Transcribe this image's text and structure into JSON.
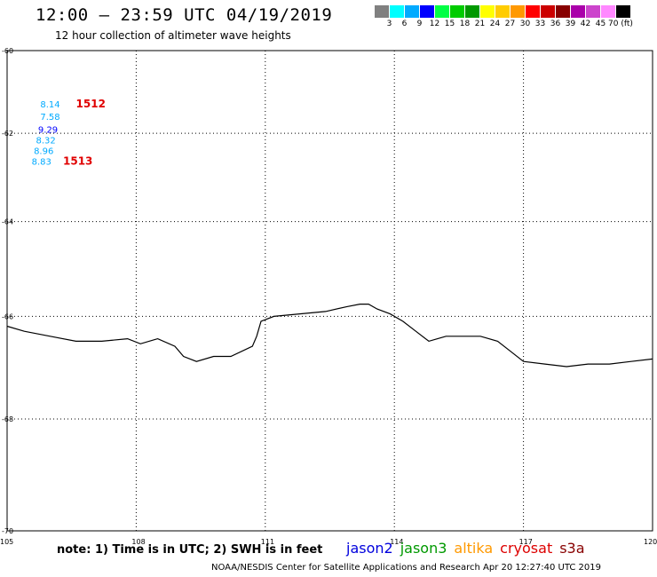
{
  "header": {
    "title": "12:00 – 23:59 UTC 04/19/2019",
    "subtitle": "12 hour collection of altimeter wave heights"
  },
  "legend": {
    "colors": [
      "#808080",
      "#00ffff",
      "#00aaff",
      "#0000ff",
      "#00ff44",
      "#00cc00",
      "#009900",
      "#ffff00",
      "#ffcc00",
      "#ff9900",
      "#ff0000",
      "#cc0000",
      "#880000",
      "#aa00aa",
      "#cc44cc",
      "#ff88ff",
      "#000000"
    ],
    "ticks": [
      "3",
      "6",
      "9",
      "12",
      "15",
      "18",
      "21",
      "24",
      "27",
      "30",
      "33",
      "36",
      "39",
      "42",
      "45",
      "70 (ft)"
    ]
  },
  "map": {
    "y_labels": [
      "-60",
      "-62",
      "-64",
      "-66",
      "-68",
      "-70"
    ],
    "x_labels": [
      "105",
      "108",
      "111",
      "114",
      "117",
      "120"
    ],
    "grid": true,
    "coastline": [
      [
        105.0,
        -66.2
      ],
      [
        105.4,
        -66.3
      ],
      [
        106.0,
        -66.4
      ],
      [
        106.6,
        -66.5
      ],
      [
        107.2,
        -66.5
      ],
      [
        107.8,
        -66.45
      ],
      [
        108.1,
        -66.55
      ],
      [
        108.5,
        -66.45
      ],
      [
        108.9,
        -66.6
      ],
      [
        109.1,
        -66.8
      ],
      [
        109.4,
        -66.9
      ],
      [
        109.8,
        -66.8
      ],
      [
        110.2,
        -66.8
      ],
      [
        110.7,
        -66.6
      ],
      [
        110.8,
        -66.4
      ],
      [
        110.9,
        -66.1
      ],
      [
        111.2,
        -66.0
      ],
      [
        111.8,
        -65.95
      ],
      [
        112.4,
        -65.9
      ],
      [
        112.9,
        -65.8
      ],
      [
        113.2,
        -65.75
      ],
      [
        113.4,
        -65.75
      ],
      [
        113.6,
        -65.85
      ],
      [
        113.9,
        -65.95
      ],
      [
        114.2,
        -66.1
      ],
      [
        114.5,
        -66.3
      ],
      [
        114.8,
        -66.5
      ],
      [
        115.2,
        -66.4
      ],
      [
        115.6,
        -66.4
      ],
      [
        116.0,
        -66.4
      ],
      [
        116.4,
        -66.5
      ],
      [
        116.7,
        -66.7
      ],
      [
        117.0,
        -66.9
      ],
      [
        117.5,
        -66.95
      ],
      [
        118.0,
        -67.0
      ],
      [
        118.5,
        -66.95
      ],
      [
        119.0,
        -66.95
      ],
      [
        119.5,
        -66.9
      ],
      [
        120.0,
        -66.85
      ]
    ],
    "wave_points": [
      {
        "text": "8.14",
        "lon": 106.0,
        "lat": -61.3,
        "color": "#00aaff"
      },
      {
        "text": "7.58",
        "lon": 106.0,
        "lat": -61.6,
        "color": "#00aaff"
      },
      {
        "text": "9.29",
        "lon": 105.95,
        "lat": -61.9,
        "color": "#0000ff"
      },
      {
        "text": "8.32",
        "lon": 105.9,
        "lat": -62.15,
        "color": "#00aaff"
      },
      {
        "text": "8.96",
        "lon": 105.85,
        "lat": -62.4,
        "color": "#00aaff"
      },
      {
        "text": "8.83",
        "lon": 105.8,
        "lat": -62.65,
        "color": "#00aaff"
      }
    ],
    "track_labels": [
      {
        "text": "1512",
        "lon": 106.6,
        "lat": -61.3
      },
      {
        "text": "1513",
        "lon": 106.3,
        "lat": -62.65
      }
    ]
  },
  "footer": {
    "note": "note: 1) Time is in UTC; 2) SWH is in feet",
    "satellites": [
      {
        "name": "jason2",
        "color": "#0000dd"
      },
      {
        "name": "jason3",
        "color": "#009900"
      },
      {
        "name": "altika",
        "color": "#ff9900"
      },
      {
        "name": "cryosat",
        "color": "#dd0000"
      },
      {
        "name": "s3a",
        "color": "#880000"
      }
    ],
    "credit": "NOAA/NESDIS Center for Satellite Applications and Research    Apr 20 12:27:40 UTC 2019"
  }
}
